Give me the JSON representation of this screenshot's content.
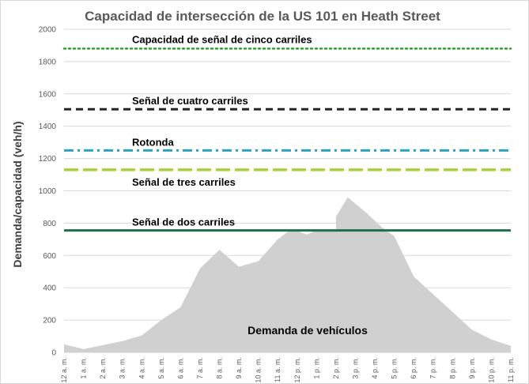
{
  "chart_data": {
    "type": "area",
    "title": "Capacidad de intersección de la US 101 en Heath Street",
    "ylabel": "Demanda/capacidad (veh/h)",
    "xlabel": "",
    "ylim": [
      0,
      2000
    ],
    "yticks": [
      0,
      200,
      400,
      600,
      800,
      1000,
      1200,
      1400,
      1600,
      1800,
      2000
    ],
    "grid": true,
    "categories": [
      "12 a. m.",
      "1 a. m.",
      "2 a. m.",
      "3 a. m.",
      "4 a. m.",
      "5 a. m.",
      "6 a. m.",
      "7 a. m.",
      "8 a. m.",
      "9 a. m.",
      "10 a. m.",
      "11 a. m.",
      "12 p. m.",
      "1 p. m.",
      "2 p. m.",
      "3 p. m.",
      "4 p. m.",
      "5 p. m.",
      "6 p. m.",
      "7 p. m.",
      "8 p. m.",
      "9 p. m.",
      "10 p. m.",
      "11 p. m."
    ],
    "demand": {
      "name": "Demanda de vehículos",
      "color": "#d0d0d0",
      "points": [
        [
          0,
          50
        ],
        [
          1,
          20
        ],
        [
          2,
          45
        ],
        [
          3,
          70
        ],
        [
          4,
          105
        ],
        [
          5,
          200
        ],
        [
          6,
          280
        ],
        [
          7,
          520
        ],
        [
          8,
          635
        ],
        [
          9,
          530
        ],
        [
          10,
          565
        ],
        [
          11,
          700
        ],
        [
          11.5,
          745
        ],
        [
          12,
          750
        ],
        [
          12.5,
          730
        ],
        [
          13,
          755
        ],
        [
          14,
          760
        ],
        [
          14,
          840
        ],
        [
          14.6,
          960
        ],
        [
          15.6,
          860
        ],
        [
          16.4,
          770
        ],
        [
          17,
          720
        ],
        [
          18,
          470
        ],
        [
          19,
          360
        ],
        [
          20,
          250
        ],
        [
          21,
          140
        ],
        [
          22,
          80
        ],
        [
          23,
          40
        ]
      ]
    },
    "capacity_lines": [
      {
        "name": "Capacidad de señal de cinco carriles",
        "value": 1880,
        "color": "#2ca02c",
        "dash": "dotted"
      },
      {
        "name": "Señal de cuatro carriles",
        "value": 1505,
        "color": "#262626",
        "dash": "dashed"
      },
      {
        "name": "Rotonda",
        "value": 1250,
        "color": "#2ba3bf",
        "dash": "dashdot"
      },
      {
        "name": "Señal de tres carriles",
        "value": 1130,
        "color": "#a7d13a",
        "dash": "longdash"
      },
      {
        "name": "Señal de dos carriles",
        "value": 755,
        "color": "#1f6f4a",
        "dash": "solid"
      }
    ]
  }
}
